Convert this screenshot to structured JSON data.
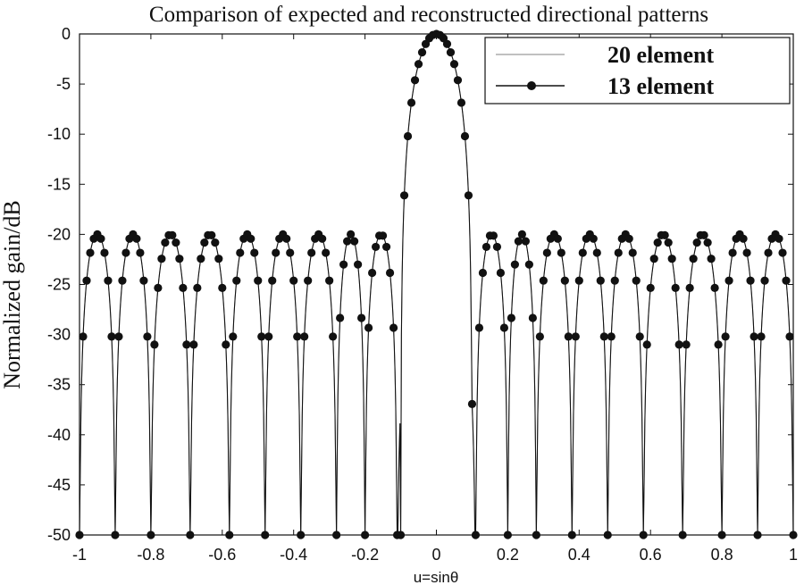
{
  "chart_data": {
    "type": "line",
    "title": "Comparison of expected and reconstructed directional patterns",
    "xlabel": "u=sinθ",
    "ylabel": "Normalized gain/dB",
    "xlim": [
      -1,
      1
    ],
    "ylim": [
      -50,
      0
    ],
    "xticks": [
      -1,
      -0.8,
      -0.6,
      -0.4,
      -0.2,
      0,
      0.2,
      0.4,
      0.6,
      0.8,
      1
    ],
    "xtick_labels": [
      "-1",
      "-0.8",
      "-0.6",
      "-0.4",
      "-0.2",
      "0",
      "0.2",
      "0.4",
      "0.6",
      "0.8",
      "1"
    ],
    "yticks": [
      0,
      -5,
      -10,
      -15,
      -20,
      -25,
      -30,
      -35,
      -40,
      -45,
      -50
    ],
    "ytick_labels": [
      "0",
      "-5",
      "-10",
      "-15",
      "-20",
      "-25",
      "-30",
      "-35",
      "-40",
      "-45",
      "-50"
    ],
    "grid": false,
    "legend_position": "top-right",
    "series": [
      {
        "name": "20 element",
        "style": "line",
        "color": "#9a9a9a",
        "mainlobe_halfwidth": 0.1,
        "sidelobe_level_db": -20,
        "nulls": [
          -0.9,
          -0.8,
          -0.69,
          -0.58,
          -0.48,
          -0.38,
          -0.28,
          -0.2,
          -0.11,
          0.11,
          0.2,
          0.28,
          0.38,
          0.48,
          0.58,
          0.69,
          0.8,
          0.9
        ]
      },
      {
        "name": "13 element",
        "style": "line-with-markers",
        "color": "#111111",
        "marker": "circle",
        "mainlobe_halfwidth": 0.1,
        "sidelobe_level_db": -20,
        "nulls": [
          -0.9,
          -0.8,
          -0.69,
          -0.58,
          -0.48,
          -0.38,
          -0.28,
          -0.2,
          -0.11,
          0.11,
          0.2,
          0.28,
          0.38,
          0.48,
          0.58,
          0.69,
          0.8,
          0.9
        ]
      }
    ]
  }
}
